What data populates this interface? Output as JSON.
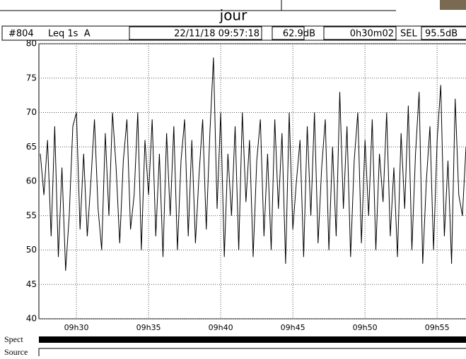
{
  "chart_data": {
    "type": "line",
    "title": "jour",
    "header": {
      "id": "#804",
      "measure": "Leq 1s  A",
      "timestamp": "22/11/18 09:57:18",
      "level": "62.9dB",
      "duration": "0h30m02",
      "sel_label": "SEL",
      "sel_value": "95.5dB"
    },
    "bottom_labels": [
      "Spect",
      "Source"
    ],
    "color": "#000000",
    "grid": true,
    "xlim": [
      27.4,
      57.0
    ],
    "xticks": [
      {
        "value": 30,
        "label": "09h30"
      },
      {
        "value": 35,
        "label": "09h35"
      },
      {
        "value": 40,
        "label": "09h40"
      },
      {
        "value": 45,
        "label": "09h45"
      },
      {
        "value": 50,
        "label": "09h50"
      },
      {
        "value": 55,
        "label": "09h55"
      }
    ],
    "ylim": [
      40,
      80
    ],
    "yticks": [
      40,
      45,
      50,
      55,
      60,
      65,
      70,
      75,
      80
    ],
    "x": [
      27.5,
      27.75,
      28,
      28.25,
      28.5,
      28.75,
      29,
      29.25,
      29.5,
      29.75,
      30,
      30.25,
      30.5,
      30.75,
      31,
      31.25,
      31.5,
      31.75,
      32,
      32.25,
      32.5,
      32.75,
      33,
      33.25,
      33.5,
      33.75,
      34,
      34.25,
      34.5,
      34.75,
      35,
      35.25,
      35.5,
      35.75,
      36,
      36.25,
      36.5,
      36.75,
      37,
      37.25,
      37.5,
      37.75,
      38,
      38.25,
      38.5,
      38.75,
      39,
      39.25,
      39.5,
      39.75,
      40,
      40.25,
      40.5,
      40.75,
      41,
      41.25,
      41.5,
      41.75,
      42,
      42.25,
      42.5,
      42.75,
      43,
      43.25,
      43.5,
      43.75,
      44,
      44.25,
      44.5,
      44.75,
      45,
      45.25,
      45.5,
      45.75,
      46,
      46.25,
      46.5,
      46.75,
      47,
      47.25,
      47.5,
      47.75,
      48,
      48.25,
      48.5,
      48.75,
      49,
      49.25,
      49.5,
      49.75,
      50,
      50.25,
      50.5,
      50.75,
      51,
      51.25,
      51.5,
      51.75,
      52,
      52.25,
      52.5,
      52.75,
      53,
      53.25,
      53.5,
      53.75,
      54,
      54.25,
      54.5,
      54.75,
      55,
      55.25,
      55.5,
      55.75,
      56,
      56.25,
      56.5,
      56.75,
      57
    ],
    "values": [
      64,
      58,
      66,
      52,
      68,
      49,
      62,
      47,
      55,
      68,
      70,
      53,
      64,
      52,
      60,
      69,
      56,
      50,
      67,
      55,
      70,
      62,
      51,
      63,
      69,
      53,
      58,
      70,
      50,
      66,
      58,
      69,
      52,
      64,
      49,
      67,
      55,
      68,
      50,
      63,
      69,
      52,
      66,
      51,
      61,
      69,
      53,
      67,
      78,
      56,
      70,
      49,
      64,
      55,
      68,
      50,
      70,
      57,
      66,
      49,
      63,
      69,
      52,
      64,
      50,
      69,
      56,
      67,
      48,
      70,
      53,
      60,
      66,
      49,
      68,
      55,
      70,
      51,
      62,
      69,
      50,
      65,
      52,
      73,
      56,
      68,
      49,
      63,
      70,
      51,
      66,
      55,
      69,
      50,
      64,
      57,
      70,
      52,
      62,
      49,
      67,
      56,
      71,
      50,
      64,
      73,
      48,
      60,
      68,
      50,
      66,
      74,
      52,
      63,
      48,
      72,
      58,
      55,
      65
    ]
  }
}
